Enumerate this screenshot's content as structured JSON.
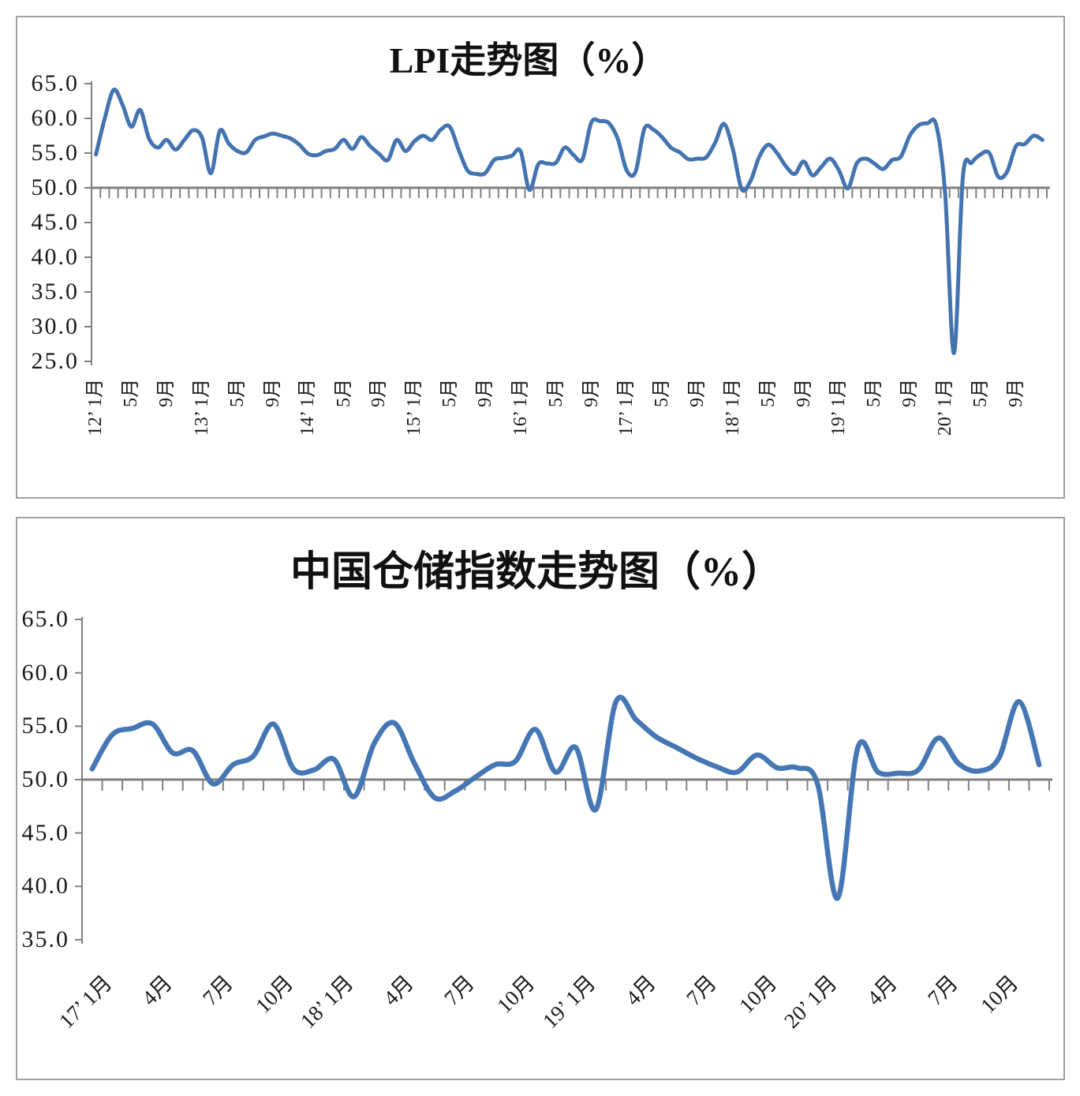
{
  "styles": {
    "background": "#ffffff",
    "axis_color": "#808080",
    "text_color": "#1a1a1a",
    "panel_border_color": "#a0a0a0",
    "line_color_lpi": "#4374B0",
    "line_color_warehouse": "#4577B4"
  },
  "chart_data": [
    {
      "type": "line",
      "title": "LPI走势图（%）",
      "series_name": "LPI",
      "series_color": "#4374B0",
      "start_month": "2012-01",
      "end_month": "2020-12",
      "frequency": "monthly",
      "ylim": [
        25,
        65
      ],
      "y_step": 5,
      "baseline_value": 50,
      "grid": false,
      "legend": "none",
      "smoothed": true,
      "y_tick_labels": [
        "65.0",
        "60.0",
        "55.0",
        "50.0",
        "45.0",
        "40.0",
        "35.0",
        "30.0",
        "25.0"
      ],
      "x_label_every_n_months": 4,
      "x_tick_labels": [
        "12’ 1月",
        "5月",
        "9月",
        "13’ 1月",
        "5月",
        "9月",
        "14’ 1月",
        "5月",
        "9月",
        "15’ 1月",
        "5月",
        "9月",
        "16’ 1月",
        "5月",
        "9月",
        "17’ 1月",
        "5月",
        "9月",
        "18’ 1月",
        "5月",
        "9月",
        "19’ 1月",
        "5月",
        "9月",
        "20’ 1月",
        "5月",
        "9月"
      ],
      "values": [
        54.8,
        60.0,
        64.1,
        62.0,
        58.8,
        61.2,
        57.1,
        55.8,
        56.9,
        55.5,
        56.9,
        58.3,
        57.2,
        52.1,
        58.2,
        56.4,
        55.3,
        55.1,
        56.9,
        57.4,
        57.8,
        57.5,
        57.1,
        56.2,
        54.9,
        54.7,
        55.3,
        55.6,
        56.9,
        55.6,
        57.3,
        56.0,
        54.9,
        54.0,
        56.9,
        55.3,
        56.7,
        57.5,
        56.9,
        58.4,
        58.8,
        55.5,
        52.5,
        52.0,
        52.1,
        54.0,
        54.3,
        54.6,
        55.3,
        49.7,
        53.4,
        53.5,
        53.6,
        55.8,
        54.7,
        54.1,
        59.4,
        59.6,
        59.3,
        57.0,
        52.5,
        52.3,
        58.5,
        58.4,
        57.3,
        55.8,
        55.1,
        54.1,
        54.2,
        54.4,
        56.5,
        59.2,
        55.6,
        49.8,
        51.0,
        54.5,
        56.2,
        55.0,
        53.1,
        52.0,
        53.8,
        51.8,
        53.0,
        54.2,
        52.5,
        49.9,
        53.5,
        54.2,
        53.5,
        52.7,
        54.0,
        54.5,
        57.5,
        59.0,
        59.3,
        59.0,
        49.1,
        26.2,
        51.5,
        53.6,
        54.8,
        55.0,
        51.6,
        52.3,
        56.0,
        56.3,
        57.5,
        56.9
      ]
    },
    {
      "type": "line",
      "title": "中国仓储指数走势图（%）",
      "series_name": "中国仓储指数",
      "series_color": "#4577B4",
      "start_month": "2017-01",
      "end_month": "2020-12",
      "frequency": "monthly",
      "ylim": [
        35,
        65
      ],
      "y_step": 5,
      "baseline_value": 50,
      "grid": false,
      "legend": "none",
      "smoothed": true,
      "y_tick_labels": [
        "65.0",
        "60.0",
        "55.0",
        "50.0",
        "45.0",
        "40.0",
        "35.0"
      ],
      "x_label_every_n_months": 3,
      "x_tick_labels": [
        "17’ 1月",
        "4月",
        "7月",
        "10月",
        "18’ 1月",
        "4月",
        "7月",
        "10月",
        "19’ 1月",
        "4月",
        "7月",
        "10月",
        "20’ 1月",
        "4月",
        "7月",
        "10月"
      ],
      "values": [
        51.0,
        54.2,
        54.8,
        55.2,
        52.5,
        52.7,
        49.6,
        51.4,
        52.2,
        55.2,
        51.0,
        50.9,
        51.9,
        48.4,
        53.4,
        55.3,
        51.5,
        48.3,
        48.9,
        50.2,
        51.4,
        51.7,
        54.7,
        50.7,
        53.0,
        47.2,
        57.3,
        55.6,
        54.0,
        53.0,
        52.0,
        51.2,
        50.7,
        52.3,
        51.1,
        51.1,
        49.6,
        38.9,
        53.0,
        50.7,
        50.6,
        50.9,
        53.9,
        51.5,
        50.8,
        52.0,
        57.3,
        51.4
      ]
    }
  ]
}
